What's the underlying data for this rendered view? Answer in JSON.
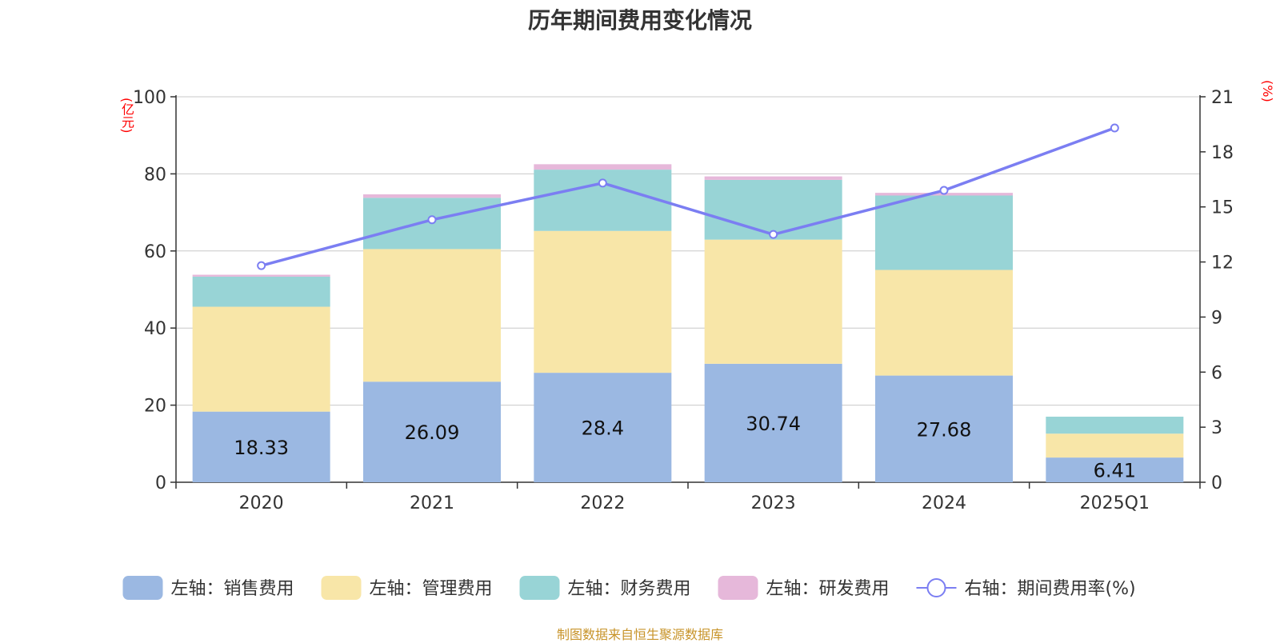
{
  "chart_data": {
    "type": "bar",
    "title": "历年期间费用变化情况",
    "source": "制图数据来自恒生聚源数据库",
    "categories": [
      "2020",
      "2021",
      "2022",
      "2023",
      "2024",
      "2025Q1"
    ],
    "left_axis": {
      "unit": "(亿元)",
      "ylim": [
        0,
        100
      ],
      "ticks": [
        "0",
        "20",
        "40",
        "60",
        "80",
        "100"
      ]
    },
    "right_axis": {
      "unit": "(%)",
      "ylim": [
        0,
        21
      ],
      "ticks": [
        "0",
        "3",
        "6",
        "9",
        "12",
        "15",
        "18",
        "21"
      ]
    },
    "grid": true,
    "legend_position": "bottom",
    "series": [
      {
        "name": "左轴：销售费用",
        "type": "bar",
        "axis": "left",
        "color": "#9bb8e2",
        "values": [
          18.33,
          26.09,
          28.4,
          30.74,
          27.68,
          6.41
        ],
        "labels": [
          "18.33",
          "26.09",
          "28.4",
          "30.74",
          "27.68",
          "6.41"
        ]
      },
      {
        "name": "左轴：管理费用",
        "type": "bar",
        "axis": "left",
        "color": "#f8e6a8",
        "values": [
          27.2,
          34.4,
          36.8,
          32.2,
          27.4,
          6.2
        ]
      },
      {
        "name": "左轴：财务费用",
        "type": "bar",
        "axis": "left",
        "color": "#98d4d6",
        "values": [
          7.8,
          13.3,
          15.9,
          15.5,
          19.3,
          4.4
        ]
      },
      {
        "name": "左轴：研发费用",
        "type": "bar",
        "axis": "left",
        "color": "#e6b8da",
        "values": [
          0.5,
          0.9,
          1.4,
          0.9,
          0.7,
          0
        ]
      },
      {
        "name": "右轴：期间费用率(%)",
        "type": "line",
        "axis": "right",
        "color": "#7b7ef2",
        "values": [
          11.8,
          14.3,
          16.3,
          13.5,
          15.9,
          19.3
        ]
      }
    ]
  }
}
